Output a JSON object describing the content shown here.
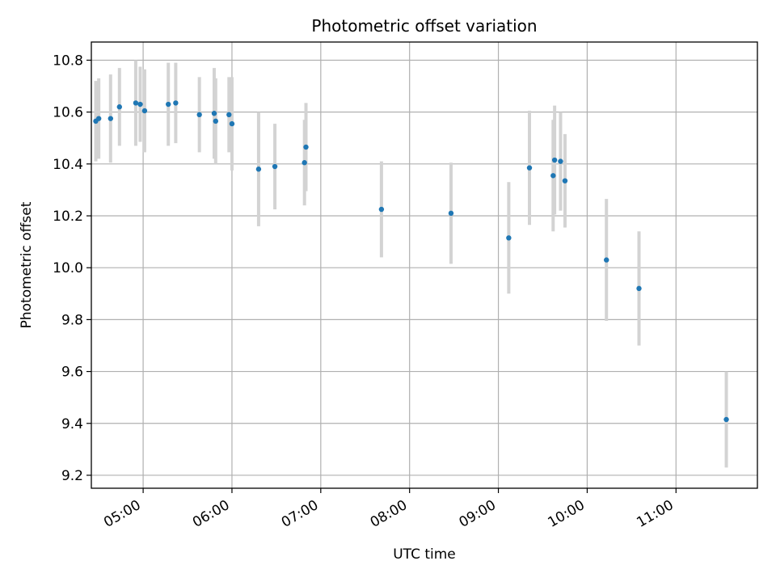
{
  "chart_data": {
    "type": "scatter",
    "title": "Photometric offset variation",
    "xlabel": "UTC time",
    "ylabel": "Photometric offset",
    "x_unit": "UTC time of day",
    "xlim": [
      "04:25",
      "11:55"
    ],
    "ylim": [
      9.15,
      10.87
    ],
    "x_ticks": [
      "05:00",
      "06:00",
      "07:00",
      "08:00",
      "09:00",
      "10:00",
      "11:00"
    ],
    "y_ticks": [
      9.2,
      9.4,
      9.6,
      9.8,
      10.0,
      10.2,
      10.4,
      10.6,
      10.8
    ],
    "grid": true,
    "point_color": "#1f77b4",
    "errorbar_color": "#d3d3d3",
    "series": [
      {
        "points": [
          {
            "x": "04:28",
            "y": 10.565,
            "err": 0.155
          },
          {
            "x": "04:30",
            "y": 10.575,
            "err": 0.155
          },
          {
            "x": "04:38",
            "y": 10.575,
            "err": 0.17
          },
          {
            "x": "04:44",
            "y": 10.62,
            "err": 0.15
          },
          {
            "x": "04:55",
            "y": 10.635,
            "err": 0.165
          },
          {
            "x": "04:58",
            "y": 10.63,
            "err": 0.145
          },
          {
            "x": "05:01",
            "y": 10.605,
            "err": 0.16
          },
          {
            "x": "05:17",
            "y": 10.63,
            "err": 0.16
          },
          {
            "x": "05:22",
            "y": 10.635,
            "err": 0.155
          },
          {
            "x": "05:38",
            "y": 10.59,
            "err": 0.145
          },
          {
            "x": "05:48",
            "y": 10.595,
            "err": 0.175
          },
          {
            "x": "05:49",
            "y": 10.565,
            "err": 0.165
          },
          {
            "x": "05:58",
            "y": 10.59,
            "err": 0.145
          },
          {
            "x": "06:00",
            "y": 10.555,
            "err": 0.18
          },
          {
            "x": "06:18",
            "y": 10.38,
            "err": 0.22
          },
          {
            "x": "06:29",
            "y": 10.39,
            "err": 0.165
          },
          {
            "x": "06:49",
            "y": 10.405,
            "err": 0.165
          },
          {
            "x": "06:50",
            "y": 10.465,
            "err": 0.17
          },
          {
            "x": "07:41",
            "y": 10.225,
            "err": 0.185
          },
          {
            "x": "08:28",
            "y": 10.21,
            "err": 0.195
          },
          {
            "x": "09:07",
            "y": 10.115,
            "err": 0.215
          },
          {
            "x": "09:21",
            "y": 10.385,
            "err": 0.22
          },
          {
            "x": "09:37",
            "y": 10.355,
            "err": 0.215
          },
          {
            "x": "09:38",
            "y": 10.415,
            "err": 0.21
          },
          {
            "x": "09:42",
            "y": 10.41,
            "err": 0.19
          },
          {
            "x": "09:45",
            "y": 10.335,
            "err": 0.18
          },
          {
            "x": "10:13",
            "y": 10.03,
            "err": 0.235
          },
          {
            "x": "10:35",
            "y": 9.92,
            "err": 0.22
          },
          {
            "x": "11:34",
            "y": 9.415,
            "err": 0.185
          }
        ]
      }
    ]
  }
}
